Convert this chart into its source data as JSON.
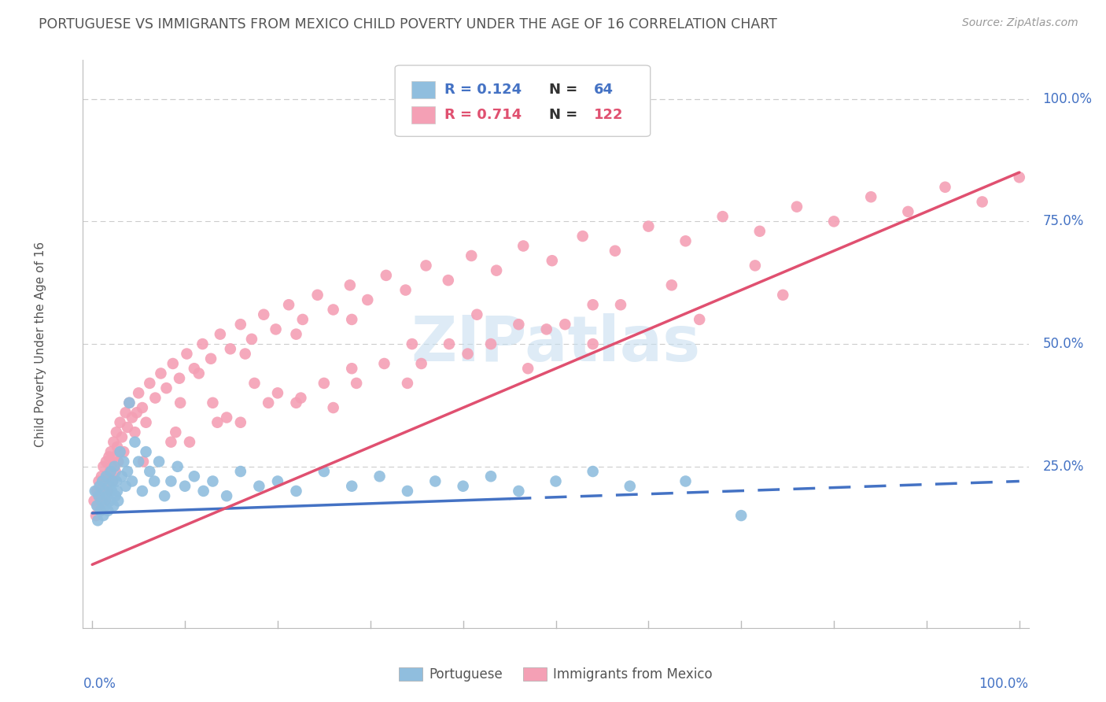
{
  "title": "PORTUGUESE VS IMMIGRANTS FROM MEXICO CHILD POVERTY UNDER THE AGE OF 16 CORRELATION CHART",
  "source": "Source: ZipAtlas.com",
  "ylabel": "Child Poverty Under the Age of 16",
  "ytick_labels": [
    "25.0%",
    "50.0%",
    "75.0%",
    "100.0%"
  ],
  "ytick_values": [
    0.25,
    0.5,
    0.75,
    1.0
  ],
  "axis_color": "#4472c4",
  "bg_color": "#ffffff",
  "grid_color": "#cccccc",
  "portuguese": {
    "x": [
      0.003,
      0.005,
      0.006,
      0.007,
      0.008,
      0.009,
      0.01,
      0.011,
      0.012,
      0.013,
      0.014,
      0.015,
      0.016,
      0.017,
      0.018,
      0.019,
      0.02,
      0.021,
      0.022,
      0.023,
      0.024,
      0.025,
      0.026,
      0.027,
      0.028,
      0.03,
      0.032,
      0.034,
      0.036,
      0.038,
      0.04,
      0.043,
      0.046,
      0.05,
      0.054,
      0.058,
      0.062,
      0.067,
      0.072,
      0.078,
      0.085,
      0.092,
      0.1,
      0.11,
      0.12,
      0.13,
      0.145,
      0.16,
      0.18,
      0.2,
      0.22,
      0.25,
      0.28,
      0.31,
      0.34,
      0.37,
      0.4,
      0.43,
      0.46,
      0.5,
      0.54,
      0.58,
      0.64,
      0.7
    ],
    "y": [
      0.2,
      0.17,
      0.14,
      0.19,
      0.21,
      0.16,
      0.18,
      0.22,
      0.15,
      0.2,
      0.17,
      0.23,
      0.19,
      0.16,
      0.21,
      0.18,
      0.24,
      0.2,
      0.22,
      0.17,
      0.25,
      0.19,
      0.22,
      0.2,
      0.18,
      0.28,
      0.23,
      0.26,
      0.21,
      0.24,
      0.38,
      0.22,
      0.3,
      0.26,
      0.2,
      0.28,
      0.24,
      0.22,
      0.26,
      0.19,
      0.22,
      0.25,
      0.21,
      0.23,
      0.2,
      0.22,
      0.19,
      0.24,
      0.21,
      0.22,
      0.2,
      0.24,
      0.21,
      0.23,
      0.2,
      0.22,
      0.21,
      0.23,
      0.2,
      0.22,
      0.24,
      0.21,
      0.22,
      0.15
    ],
    "color": "#90bede",
    "line_color": "#4472c4",
    "R": 0.124,
    "N": 64
  },
  "mexico": {
    "x": [
      0.002,
      0.004,
      0.005,
      0.006,
      0.007,
      0.008,
      0.009,
      0.01,
      0.011,
      0.012,
      0.013,
      0.014,
      0.015,
      0.016,
      0.017,
      0.018,
      0.019,
      0.02,
      0.021,
      0.022,
      0.023,
      0.024,
      0.025,
      0.026,
      0.027,
      0.028,
      0.03,
      0.032,
      0.034,
      0.036,
      0.038,
      0.04,
      0.043,
      0.046,
      0.05,
      0.054,
      0.058,
      0.062,
      0.068,
      0.074,
      0.08,
      0.087,
      0.094,
      0.102,
      0.11,
      0.119,
      0.128,
      0.138,
      0.149,
      0.16,
      0.172,
      0.185,
      0.198,
      0.212,
      0.227,
      0.243,
      0.26,
      0.278,
      0.297,
      0.317,
      0.338,
      0.36,
      0.384,
      0.409,
      0.436,
      0.465,
      0.496,
      0.529,
      0.564,
      0.6,
      0.64,
      0.68,
      0.72,
      0.76,
      0.8,
      0.84,
      0.88,
      0.92,
      0.96,
      1.0,
      0.048,
      0.095,
      0.145,
      0.2,
      0.26,
      0.09,
      0.13,
      0.175,
      0.225,
      0.28,
      0.34,
      0.405,
      0.47,
      0.54,
      0.115,
      0.165,
      0.22,
      0.28,
      0.345,
      0.415,
      0.49,
      0.57,
      0.655,
      0.745,
      0.085,
      0.135,
      0.19,
      0.25,
      0.315,
      0.385,
      0.46,
      0.54,
      0.625,
      0.715,
      0.055,
      0.105,
      0.16,
      0.22,
      0.285,
      0.355,
      0.43,
      0.51
    ],
    "y": [
      0.18,
      0.15,
      0.2,
      0.17,
      0.22,
      0.19,
      0.16,
      0.23,
      0.2,
      0.25,
      0.22,
      0.18,
      0.26,
      0.23,
      0.2,
      0.27,
      0.24,
      0.28,
      0.25,
      0.22,
      0.3,
      0.27,
      0.24,
      0.32,
      0.29,
      0.26,
      0.34,
      0.31,
      0.28,
      0.36,
      0.33,
      0.38,
      0.35,
      0.32,
      0.4,
      0.37,
      0.34,
      0.42,
      0.39,
      0.44,
      0.41,
      0.46,
      0.43,
      0.48,
      0.45,
      0.5,
      0.47,
      0.52,
      0.49,
      0.54,
      0.51,
      0.56,
      0.53,
      0.58,
      0.55,
      0.6,
      0.57,
      0.62,
      0.59,
      0.64,
      0.61,
      0.66,
      0.63,
      0.68,
      0.65,
      0.7,
      0.67,
      0.72,
      0.69,
      0.74,
      0.71,
      0.76,
      0.73,
      0.78,
      0.75,
      0.8,
      0.77,
      0.82,
      0.79,
      0.84,
      0.36,
      0.38,
      0.35,
      0.4,
      0.37,
      0.32,
      0.38,
      0.42,
      0.39,
      0.45,
      0.42,
      0.48,
      0.45,
      0.5,
      0.44,
      0.48,
      0.52,
      0.55,
      0.5,
      0.56,
      0.53,
      0.58,
      0.55,
      0.6,
      0.3,
      0.34,
      0.38,
      0.42,
      0.46,
      0.5,
      0.54,
      0.58,
      0.62,
      0.66,
      0.26,
      0.3,
      0.34,
      0.38,
      0.42,
      0.46,
      0.5,
      0.54
    ],
    "color": "#f4a0b5",
    "line_color": "#e05070",
    "R": 0.714,
    "N": 122
  },
  "watermark_text": "ZIPatlas",
  "watermark_color": "#c8dff0"
}
